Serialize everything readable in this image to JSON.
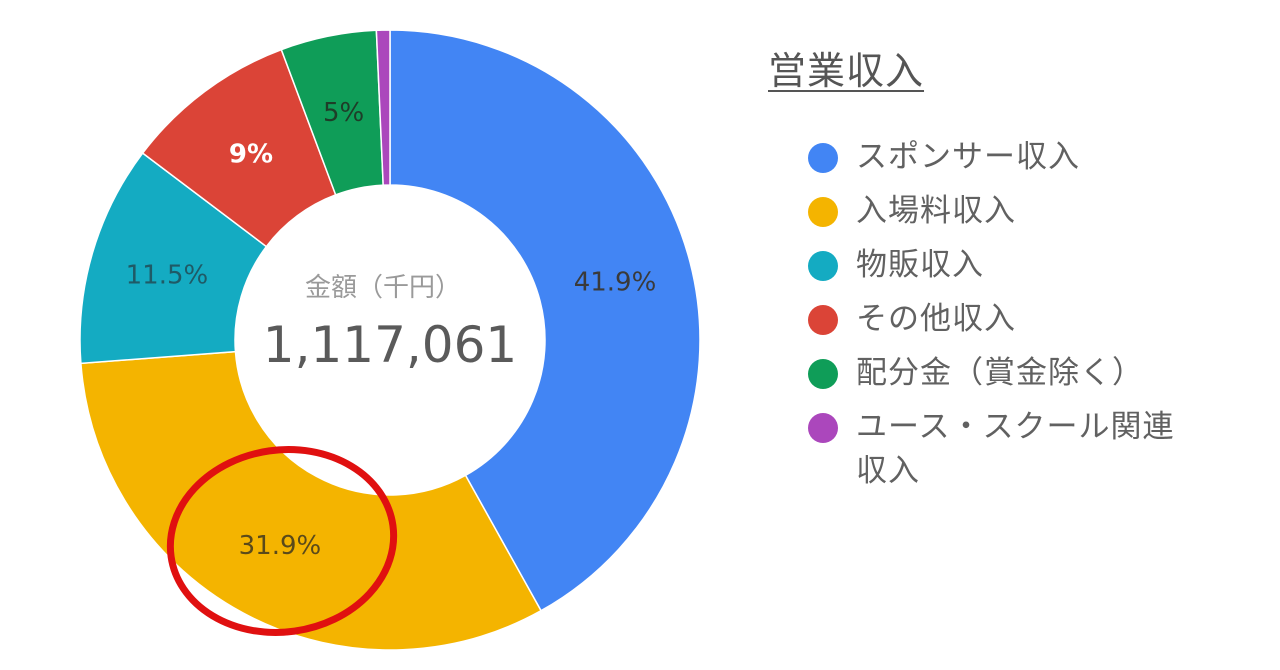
{
  "chart_data": {
    "type": "pie",
    "style": "donut",
    "title": "営業収入",
    "center": {
      "caption": "金額（千円）",
      "value": "1,117,061"
    },
    "legend_position": "right",
    "series": [
      {
        "name": "スポンサー収入",
        "value": 41.9,
        "label": "41.9%",
        "color": "#4285f4",
        "label_color": "#3a3a3a"
      },
      {
        "name": "入場料収入",
        "value": 31.9,
        "label": "31.9%",
        "color": "#f4b400",
        "label_color": "#5a4a1a"
      },
      {
        "name": "物販収入",
        "value": 11.5,
        "label": "11.5%",
        "color": "#14abc2",
        "label_color": "#1f5a66"
      },
      {
        "name": "その他収入",
        "value": 9,
        "label": "9%",
        "color": "#db4437",
        "label_color": "#ffffff"
      },
      {
        "name": "配分金（賞金除く）",
        "value": 5,
        "label": "5%",
        "color": "#0f9d58",
        "label_color": "#1e3d28"
      },
      {
        "name": "ユース・スクール関連収入",
        "value": 0.7,
        "label": "",
        "color": "#ab47bc",
        "label_color": "#ffffff"
      }
    ],
    "annotation": {
      "type": "circle",
      "target": "入場料収入",
      "color": "#e01010"
    }
  }
}
